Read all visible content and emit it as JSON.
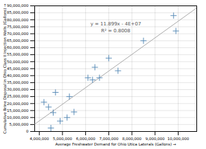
{
  "chart_data": {
    "type": "scatter",
    "xlabel": "Average Freshwater Demand for Ohio Utica Laterals (Gallons)",
    "ylabel": "Cumulative Brine Disposal in Ohio Class II Injection Wells (Gallons)",
    "annotation": "y = 11.899x - 4E+07\nR² = 0.8008",
    "series": [
      {
        "type": "scatter",
        "color": "#5b8db8",
        "marker": "plus",
        "x": [
          4200000,
          4400000,
          4500000,
          4600000,
          4700000,
          4900000,
          5200000,
          5300000,
          5500000,
          6100000,
          6300000,
          6400000,
          6600000,
          7000000,
          7400000,
          8500000,
          9800000,
          9900000
        ],
        "values": [
          21000000,
          17500000,
          2500000,
          13500000,
          28000000,
          7500000,
          10000000,
          25000000,
          14000000,
          38500000,
          37000000,
          46000000,
          38500000,
          52500000,
          43500000,
          65000000,
          83000000,
          72000000
        ]
      },
      {
        "type": "line",
        "color": "#aaaaaa",
        "x": [
          3800000,
          10800000
        ],
        "values": [
          5216200,
          88509200
        ]
      }
    ],
    "xlim": [
      3800000,
      10800000
    ],
    "ylim": [
      0,
      90000000
    ],
    "xticks": [
      {
        "value": 4000000,
        "label": "4,000,000"
      },
      {
        "value": 5000000,
        "label": "5,000,000"
      },
      {
        "value": 6000000,
        "label": "6,000,000"
      },
      {
        "value": 7000000,
        "label": "7,000,000"
      },
      {
        "value": 8000000,
        "label": "8,000,000"
      },
      {
        "value": 9000000,
        "label": "9,000,000"
      },
      {
        "value": 10000000,
        "label": "10,000,000"
      }
    ],
    "yticks": [
      0,
      {
        "value": 5000000,
        "label": "5,000,000"
      },
      {
        "value": 10000000,
        "label": "10,000,000"
      },
      {
        "value": 15000000,
        "label": "15,000,000"
      },
      {
        "value": 20000000,
        "label": "20,000,000"
      },
      {
        "value": 25000000,
        "label": "25,000,000"
      },
      {
        "value": 30000000,
        "label": "30,000,000"
      },
      {
        "value": 35000000,
        "label": "35,000,000"
      },
      {
        "value": 40000000,
        "label": "40,000,000"
      },
      {
        "value": 45000000,
        "label": "45,000,000"
      },
      {
        "value": 50000000,
        "label": "50,000,000"
      },
      {
        "value": 55000000,
        "label": "55,000,000"
      },
      {
        "value": 60000000,
        "label": "60,000,000"
      },
      {
        "value": 65000000,
        "label": "65,000,000"
      },
      {
        "value": 70000000,
        "label": "70,000,000"
      },
      {
        "value": 75000000,
        "label": "75,000,000"
      },
      {
        "value": 80000000,
        "label": "80,000,000"
      },
      {
        "value": 85000000,
        "label": "85,000,000"
      },
      {
        "value": 90000000,
        "label": "90,000,000"
      }
    ],
    "grid": true
  }
}
